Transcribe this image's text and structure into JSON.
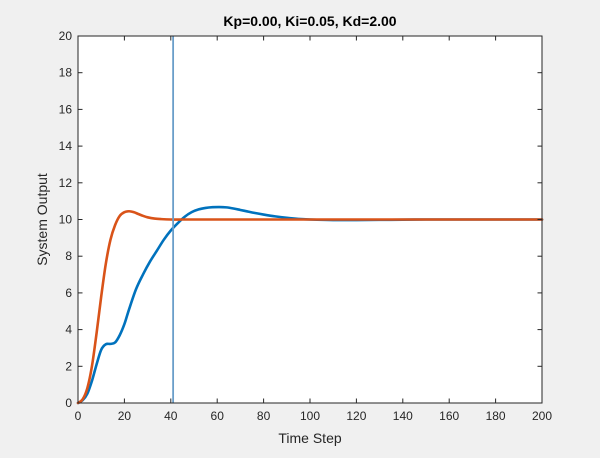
{
  "chart_data": {
    "type": "line",
    "title": "Kp=0.00, Ki=0.05, Kd=2.00",
    "xlabel": "Time Step",
    "ylabel": "System Output",
    "xlim": [
      0,
      200
    ],
    "ylim": [
      0,
      20
    ],
    "xticks": [
      0,
      20,
      40,
      60,
      80,
      100,
      120,
      140,
      160,
      180,
      200
    ],
    "yticks": [
      0,
      2,
      4,
      6,
      8,
      10,
      12,
      14,
      16,
      18,
      20
    ],
    "grid": false,
    "vertical_marker": {
      "x": 41,
      "color": "#6a9ec9"
    },
    "series": [
      {
        "name": "blue response",
        "color": "#0072bd",
        "x": [
          0,
          2,
          4,
          6,
          8,
          10,
          12,
          14,
          16,
          18,
          20,
          22,
          25,
          28,
          31,
          34,
          37,
          40,
          43,
          46,
          49,
          52,
          55,
          58,
          61,
          64,
          67,
          70,
          73,
          76,
          80,
          85,
          90,
          95,
          100,
          110,
          120,
          130,
          140,
          150,
          160,
          170,
          180,
          190,
          200
        ],
        "y": [
          0,
          0.15,
          0.5,
          1.2,
          2.1,
          2.9,
          3.2,
          3.22,
          3.3,
          3.7,
          4.3,
          5.1,
          6.2,
          7.0,
          7.7,
          8.3,
          8.9,
          9.4,
          9.8,
          10.15,
          10.4,
          10.55,
          10.63,
          10.67,
          10.68,
          10.66,
          10.6,
          10.52,
          10.44,
          10.36,
          10.27,
          10.17,
          10.09,
          10.03,
          10.0,
          9.97,
          9.97,
          9.98,
          9.99,
          10.0,
          10.0,
          10.0,
          10.0,
          10.0,
          10.0
        ]
      },
      {
        "name": "orange response",
        "color": "#d95319",
        "x": [
          0,
          2,
          4,
          6,
          8,
          10,
          12,
          14,
          16,
          18,
          20,
          22,
          24,
          26,
          28,
          30,
          33,
          36,
          40,
          45,
          50,
          60,
          80,
          100,
          120,
          140,
          160,
          180,
          200
        ],
        "y": [
          0,
          0.2,
          0.8,
          2.0,
          3.8,
          5.8,
          7.6,
          8.9,
          9.7,
          10.2,
          10.4,
          10.45,
          10.4,
          10.3,
          10.2,
          10.12,
          10.05,
          10.02,
          10.0,
          10.0,
          10.0,
          10.0,
          10.0,
          10.0,
          10.0,
          10.0,
          10.0,
          10.0,
          10.0
        ]
      }
    ]
  }
}
